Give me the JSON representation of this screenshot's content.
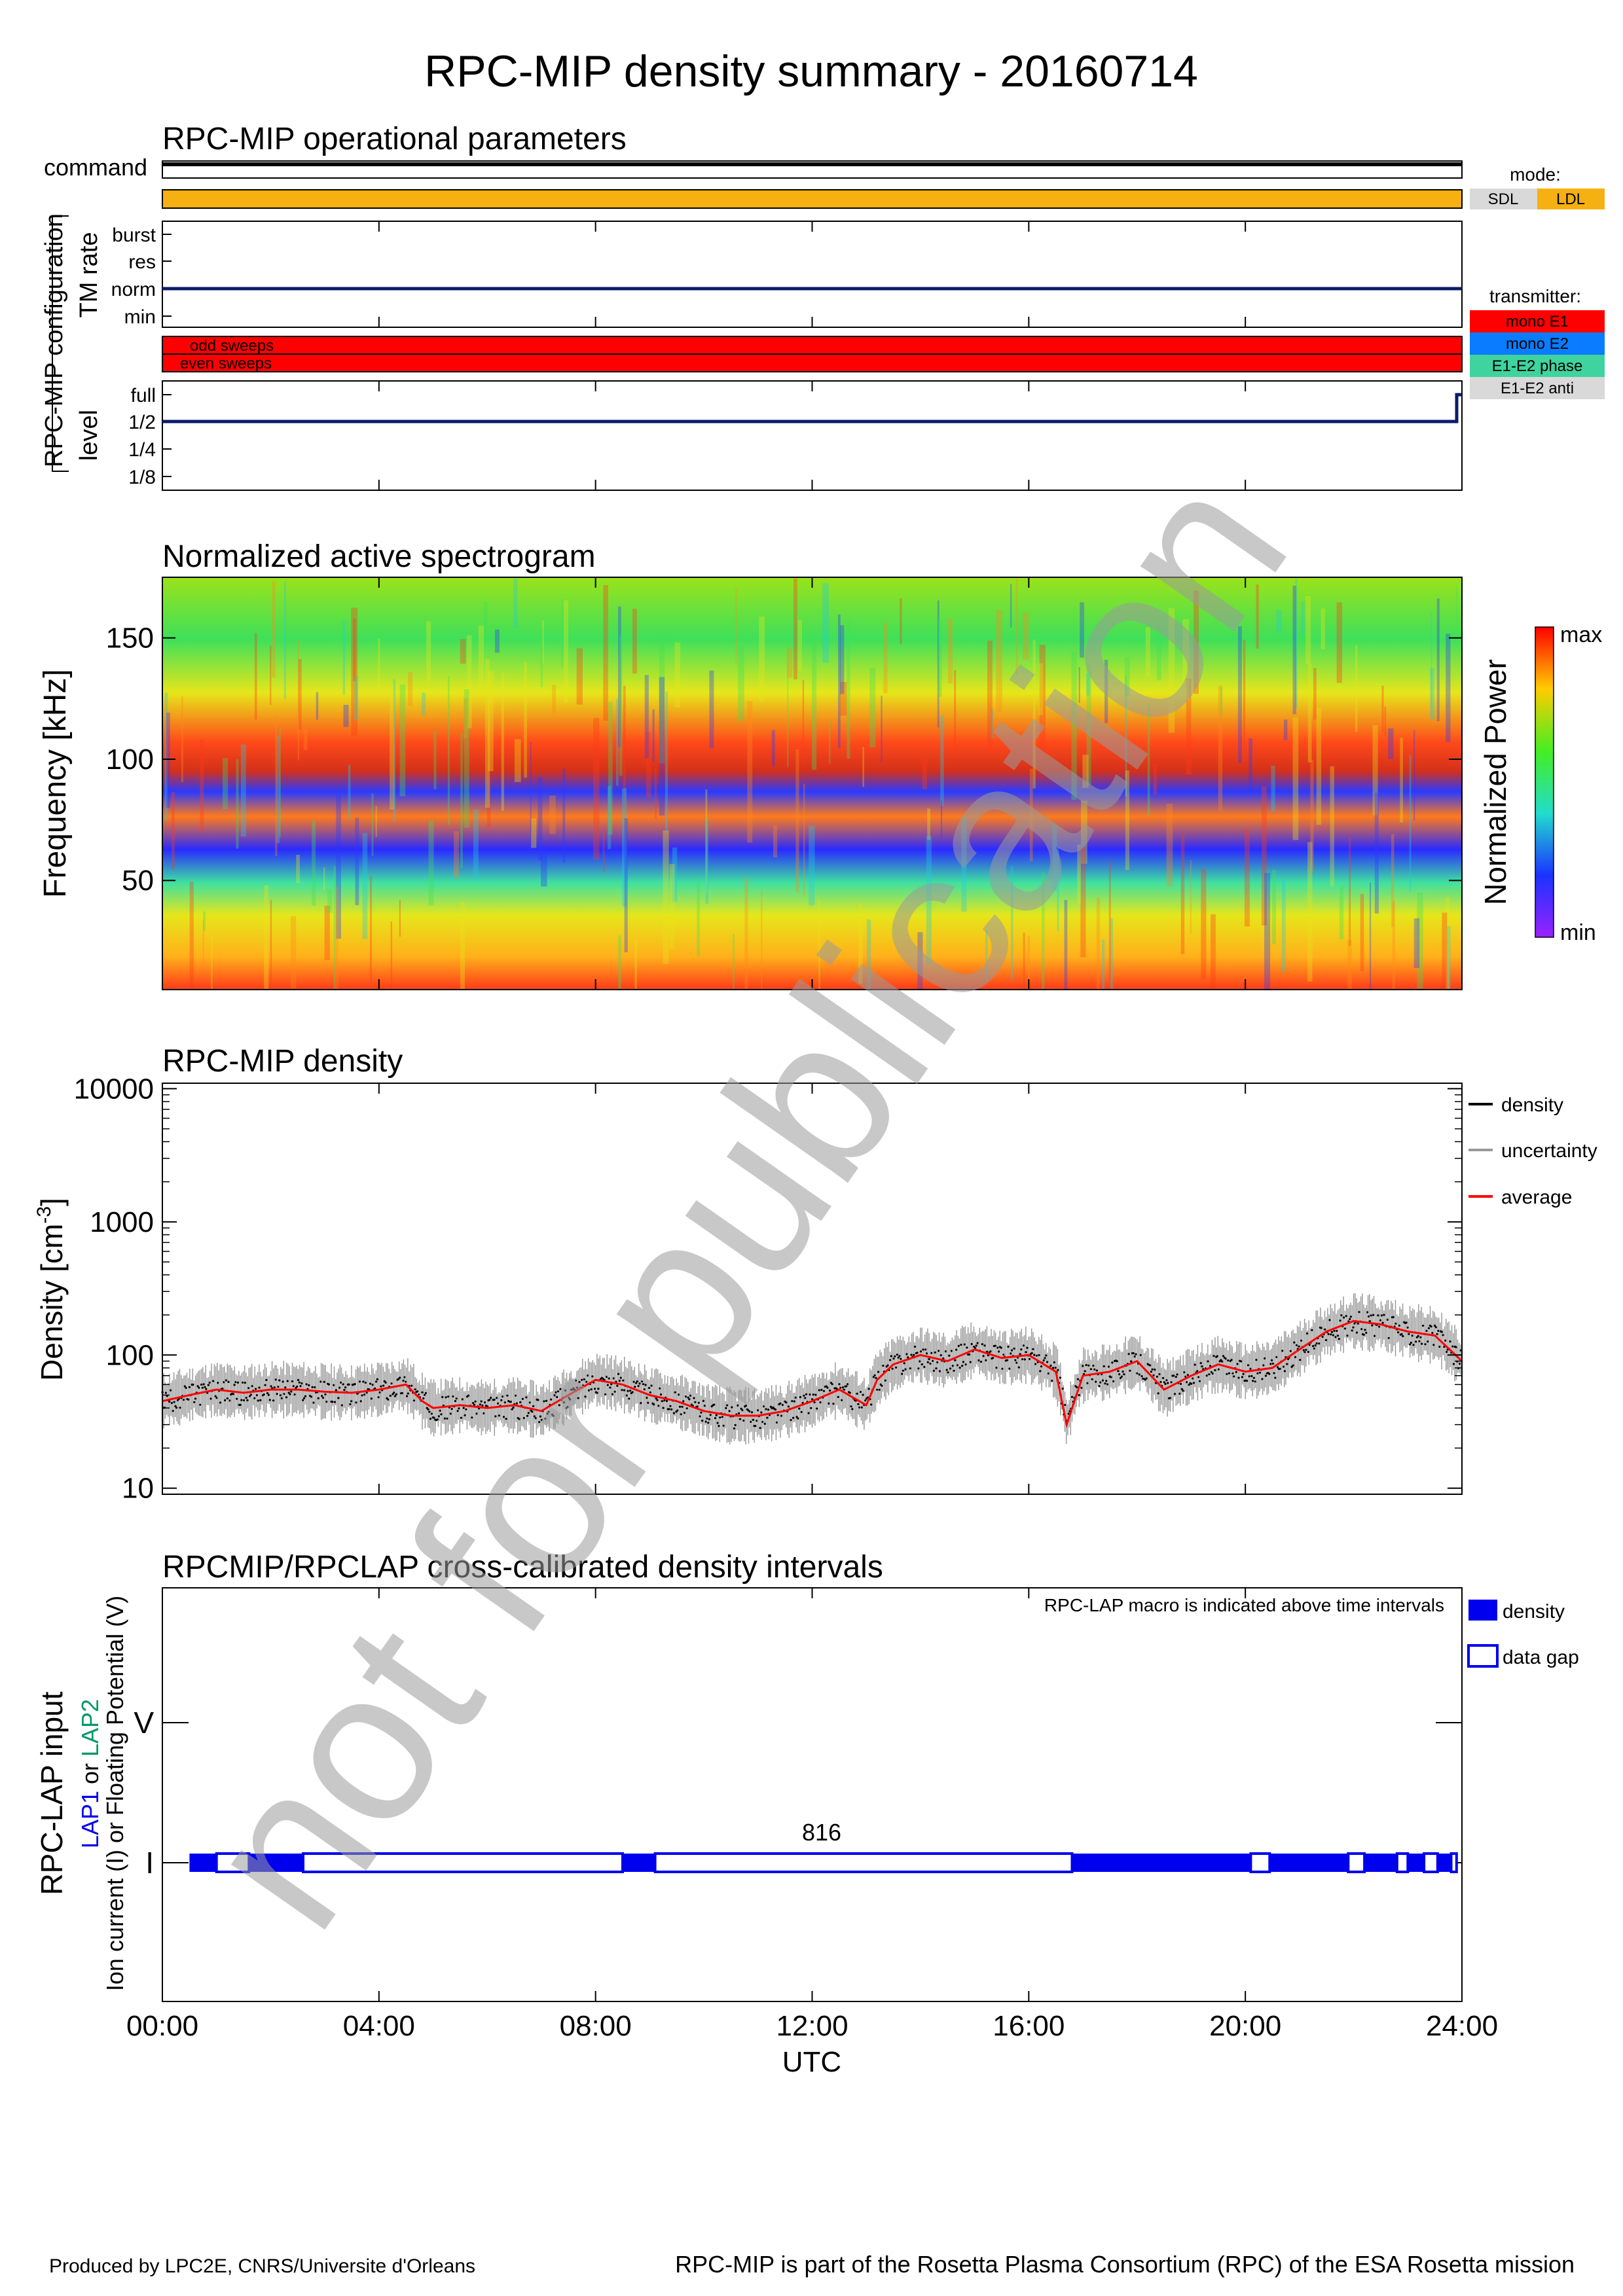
{
  "page": {
    "title": "RPC-MIP density summary - 20160714",
    "footer_left": "Produced by LPC2E, CNRS/Universite d'Orleans",
    "footer_right": "RPC-MIP is part of the Rosetta Plasma Consortium (RPC) of the ESA Rosetta mission",
    "watermark": "not for publication"
  },
  "colors": {
    "orange": "#f7b011",
    "red": "#ff0000",
    "blue": "#0a7cff",
    "teal": "#3fd3a0",
    "gray": "#d9d9d9",
    "navy": "#0b1a6b",
    "density_blue": "#0000ee",
    "lap2_green": "#009966"
  },
  "panel1": {
    "title": "RPC-MIP operational parameters",
    "command_label": "command",
    "group_label": "RPC-MIP configuration",
    "tm_label": "TM rate",
    "tm_levels": [
      "burst",
      "res",
      "norm",
      "min"
    ],
    "sweep_labels": [
      "odd sweeps",
      "even sweeps"
    ],
    "level_label": "level",
    "levels": [
      "full",
      "1/2",
      "1/4",
      "1/8"
    ],
    "mode_title": "mode:",
    "modes": [
      "SDL",
      "LDL"
    ],
    "transmitter_title": "transmitter:",
    "transmitters": [
      "mono E1",
      "mono E2",
      "E1-E2 phase",
      "E1-E2 anti"
    ]
  },
  "chart_data": [
    {
      "type": "heatmap",
      "title": "Normalized active spectrogram",
      "ylabel": "Frequency [kHz]",
      "yticks": [
        50,
        100,
        150
      ],
      "ylim": [
        5,
        175
      ],
      "colorbar_label": "Normalized Power",
      "colorbar_max": "max",
      "colorbar_min": "min"
    },
    {
      "type": "line",
      "title": "RPC-MIP density",
      "ylabel": "Density [cm",
      "ylabel_sup": "-3",
      "ylabel_end": "]",
      "yscale": "log",
      "ylim": [
        9,
        11000
      ],
      "yticks": [
        "10",
        "100",
        "1000",
        "10000"
      ],
      "legend": [
        "density",
        "uncertainty",
        "average"
      ],
      "legend_placement": "right",
      "x_hours": [
        0,
        0.5,
        1,
        1.5,
        2,
        2.5,
        3,
        3.5,
        4,
        4.5,
        4.8,
        5,
        5.5,
        6,
        6.5,
        7,
        7.5,
        8,
        8.5,
        9,
        9.5,
        10,
        10.5,
        11,
        11.5,
        12,
        12.5,
        13,
        13.2,
        13.5,
        14,
        14.5,
        15,
        15.5,
        16,
        16.5,
        16.7,
        17,
        17.5,
        18,
        18.5,
        19,
        19.5,
        20,
        20.5,
        21,
        21.5,
        22,
        22.5,
        23,
        23.5,
        24
      ],
      "average": [
        45,
        50,
        55,
        52,
        55,
        55,
        53,
        52,
        55,
        60,
        45,
        40,
        42,
        40,
        42,
        38,
        50,
        65,
        60,
        50,
        45,
        38,
        35,
        35,
        38,
        45,
        55,
        42,
        65,
        85,
        100,
        90,
        110,
        95,
        100,
        75,
        30,
        70,
        75,
        90,
        55,
        70,
        85,
        75,
        80,
        110,
        150,
        180,
        170,
        150,
        140,
        90
      ]
    },
    {
      "type": "bar",
      "title": "RPCMIP/RPCLAP cross-calibrated density intervals",
      "ylabel_line1": "RPC-LAP input",
      "ylabel_lap1": "LAP1",
      "ylabel_or": " or ",
      "ylabel_lap2": "LAP2",
      "ylabel_line3": "Ion current (I) or Floating Potential (V)",
      "ytick_labels": [
        "V",
        "I"
      ],
      "note": "RPC-LAP macro is indicated above time intervals",
      "macro_label": "816",
      "legend": [
        "density",
        "data gap"
      ],
      "xlabel": "UTC",
      "xticks": [
        "00:00",
        "04:00",
        "08:00",
        "12:00",
        "16:00",
        "20:00",
        "24:00"
      ],
      "density_intervals": [
        [
          0.5,
          1.0
        ],
        [
          1.6,
          2.6
        ],
        [
          8.5,
          9.1
        ],
        [
          16.8,
          20.1
        ],
        [
          20.45,
          21.9
        ],
        [
          22.2,
          22.8
        ],
        [
          23.0,
          23.3
        ],
        [
          23.55,
          23.8
        ]
      ],
      "data_gaps": [
        [
          1.0,
          1.6
        ],
        [
          2.6,
          8.5
        ],
        [
          9.1,
          16.8
        ],
        [
          20.1,
          20.45
        ],
        [
          21.9,
          22.2
        ],
        [
          22.8,
          23.0
        ],
        [
          23.3,
          23.55
        ],
        [
          23.8,
          23.9
        ]
      ]
    }
  ]
}
